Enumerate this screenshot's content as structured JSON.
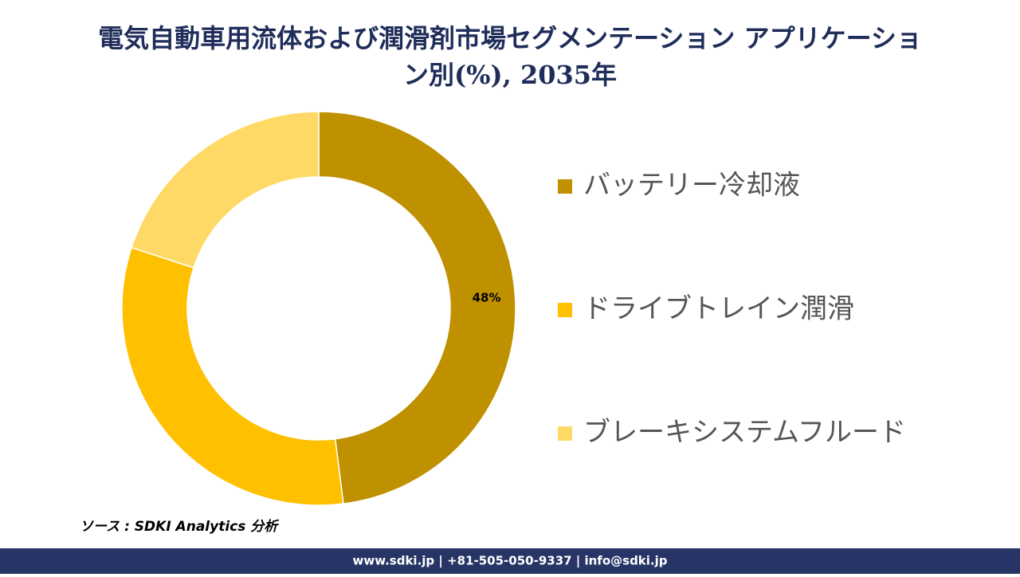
{
  "chart_data": {
    "type": "donut",
    "title": "電気自動車用流体および潤滑剤市場セグメンテーション アプリケーション別(%), 2035年",
    "categories": [
      "バッテリー冷却液",
      "ドライブトレイン潤滑",
      "ブレーキシステムフルード"
    ],
    "values": [
      48,
      32,
      20
    ],
    "value_labels": [
      "48%",
      null,
      null
    ],
    "colors": [
      "#bf9000",
      "#ffc000",
      "#ffd966"
    ],
    "legend": "right"
  },
  "source": "ソース : SDKI Analytics 分析",
  "footer": "www.sdki.jp | +81-505-050-9337 | info@sdki.jp"
}
